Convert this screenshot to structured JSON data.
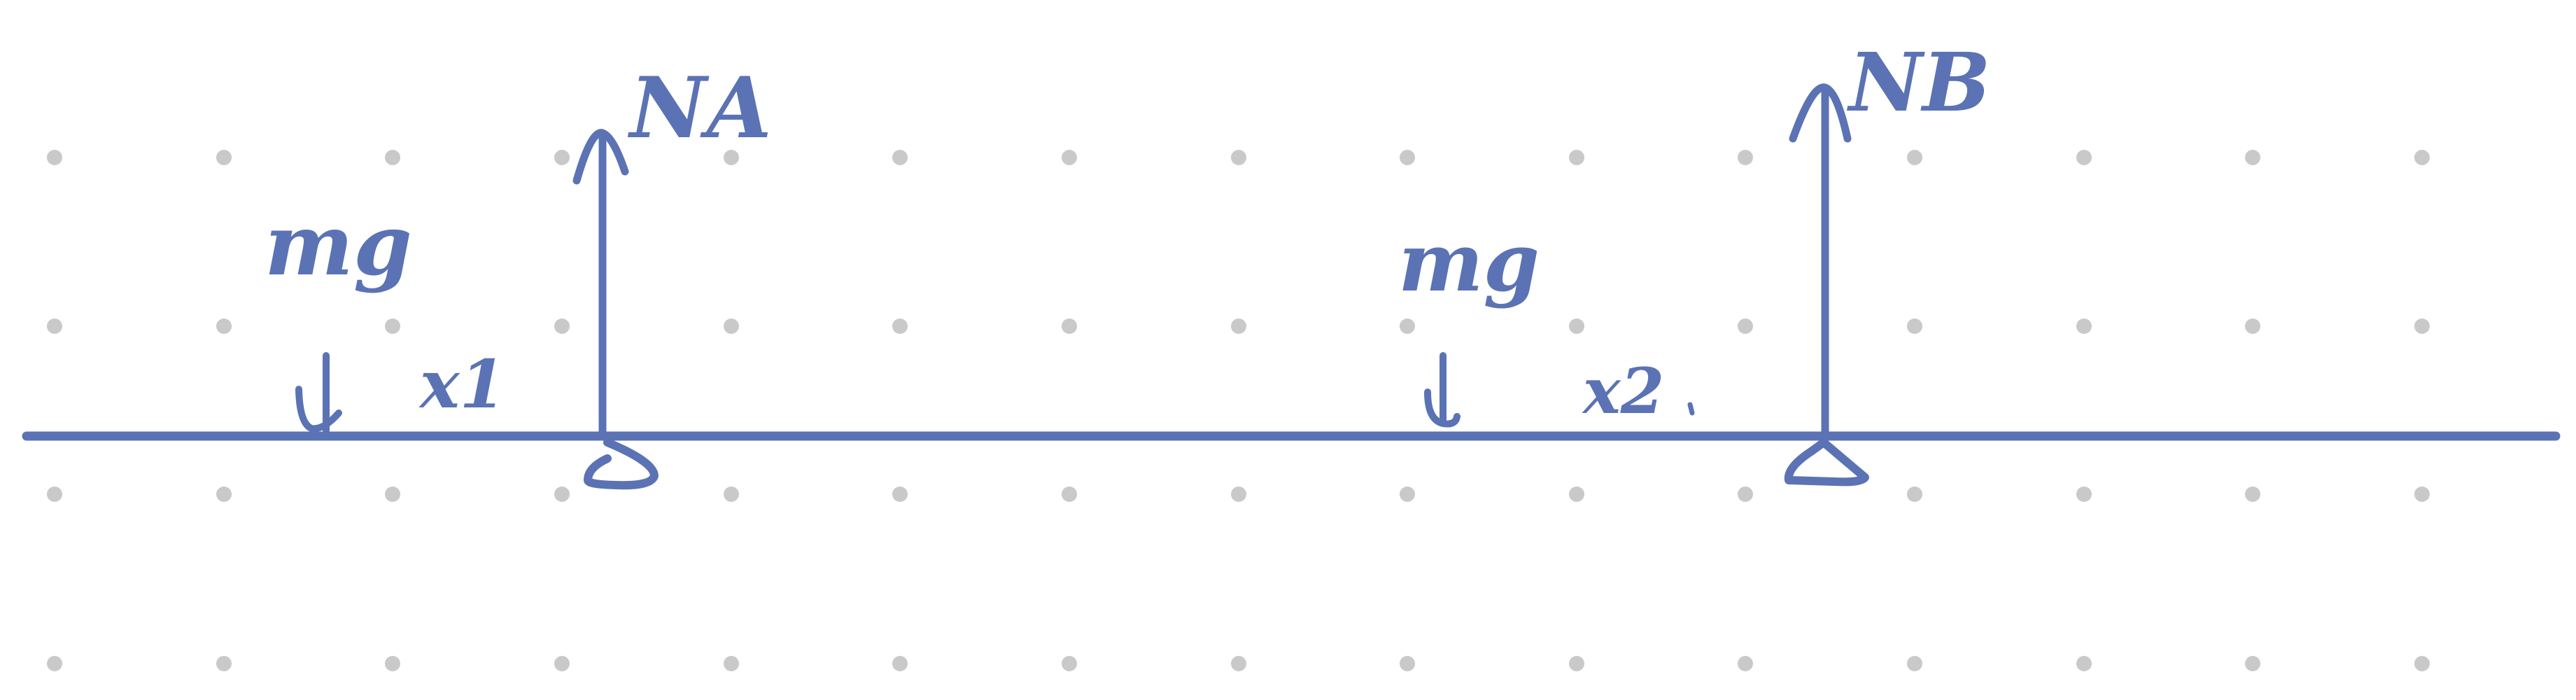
{
  "colors": {
    "background": "#ffffff",
    "ink": "#5b73b4",
    "grid_dot": "#c9c9c9"
  },
  "diagram": {
    "beam": {
      "name": "beam"
    },
    "supports": [
      {
        "id": "A",
        "type": "roller-triangle"
      },
      {
        "id": "B",
        "type": "roller-triangle"
      }
    ],
    "forces": [
      {
        "id": "mg-left",
        "label": "mg",
        "direction": "down"
      },
      {
        "id": "mg-right",
        "label": "mg",
        "direction": "down"
      },
      {
        "id": "NA",
        "label": "NA",
        "direction": "up"
      },
      {
        "id": "NB",
        "label": "NB",
        "direction": "up"
      }
    ],
    "distance_labels": [
      {
        "id": "x1",
        "label": "x1"
      },
      {
        "id": "x2",
        "label": "x2"
      }
    ]
  }
}
